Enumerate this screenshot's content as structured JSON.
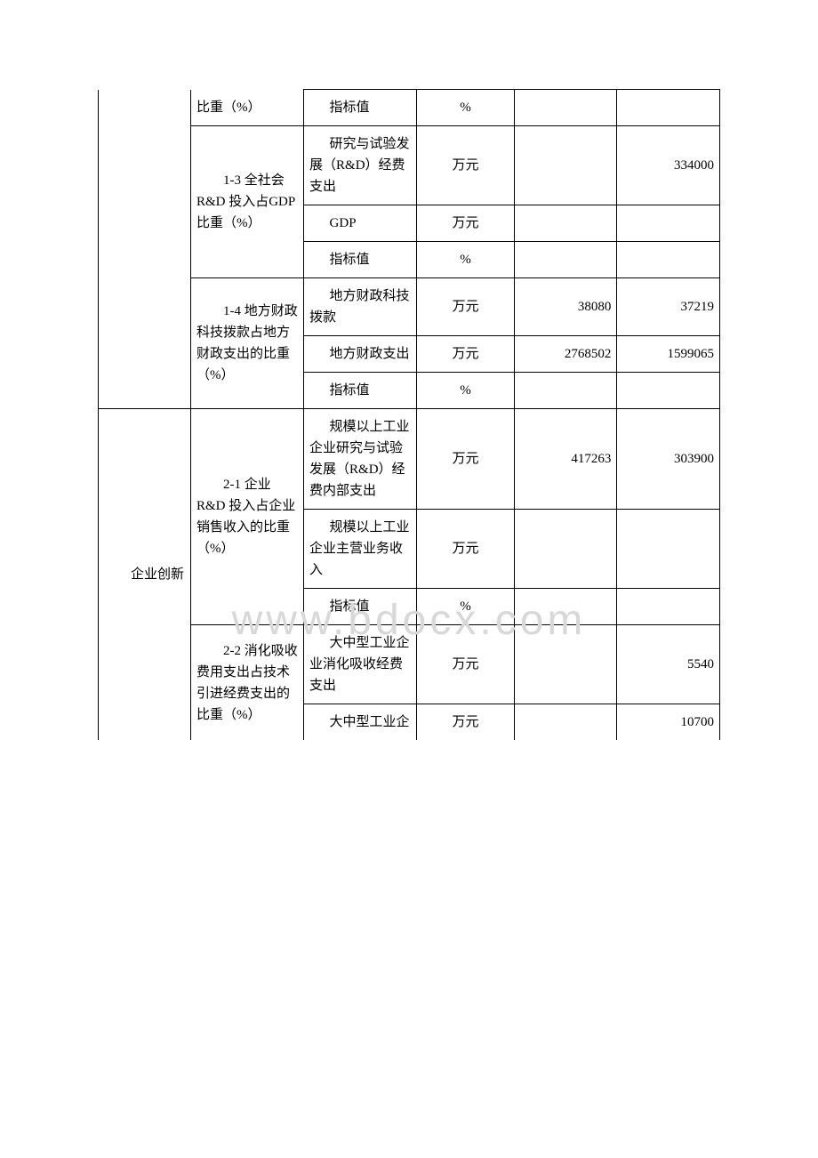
{
  "watermark": "www.bdocx.com",
  "rows": {
    "r1": {
      "cat": "",
      "name_partial": "比重（%）",
      "metric": "指标值",
      "unit": "%",
      "v1": "",
      "v2": ""
    },
    "r2": {
      "name": "1-3 全社会 R&D 投入占GDP 比重（%）",
      "metric": "研究与试验发展（R&D）经费支出",
      "unit": "万元",
      "v1": "",
      "v2": "334000"
    },
    "r3": {
      "metric": "GDP",
      "unit": "万元",
      "v1": "",
      "v2": ""
    },
    "r4": {
      "metric": "指标值",
      "unit": "%",
      "v1": "",
      "v2": ""
    },
    "r5": {
      "name": "1-4 地方财政科技拨款占地方财政支出的比重（%）",
      "metric": "地方财政科技拨款",
      "unit": "万元",
      "v1": "38080",
      "v2": "37219"
    },
    "r6": {
      "metric": "地方财政支出",
      "unit": "万元",
      "v1": "2768502",
      "v2": "1599065"
    },
    "r7": {
      "metric": "指标值",
      "unit": "%",
      "v1": "",
      "v2": ""
    },
    "r8": {
      "cat": "企业创新",
      "name": "2-1 企业 R&D 投入占企业销售收入的比重（%）",
      "metric": "规模以上工业企业研究与试验发展（R&D）经费内部支出",
      "unit": "万元",
      "v1": "417263",
      "v2": "303900"
    },
    "r9": {
      "metric": "规模以上工业企业主营业务收入",
      "unit": "万元",
      "v1": "",
      "v2": ""
    },
    "r10": {
      "metric": "指标值",
      "unit": "%",
      "v1": "",
      "v2": ""
    },
    "r11": {
      "name": "2-2 消化吸收费用支出占技术引进经费支出的比重（%）",
      "metric": "大中型工业企业消化吸收经费支出",
      "unit": "万元",
      "v1": "",
      "v2": "5540"
    },
    "r12": {
      "metric": "大中型工业企",
      "unit": "万元",
      "v1": "",
      "v2": "10700"
    }
  }
}
